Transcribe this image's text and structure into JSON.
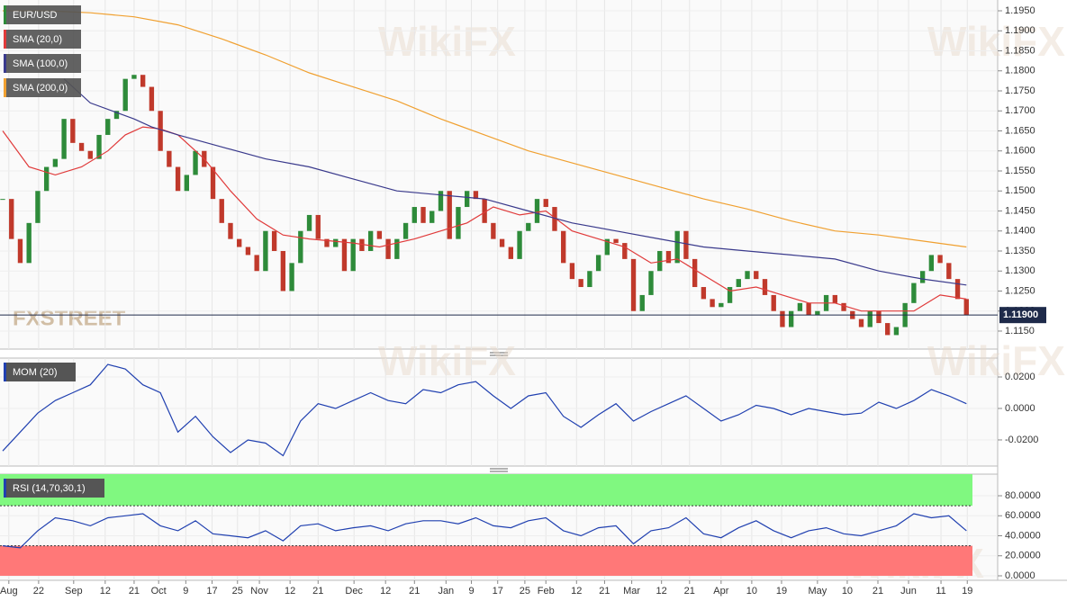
{
  "chart_data": [
    {
      "type": "candlestick",
      "title": "EUR/USD",
      "logo": "FXSTREET",
      "watermark": "WikiFX",
      "up_color": "#2e8b3a",
      "down_color": "#c0392b",
      "title_color": "#2e8b3a",
      "xlim": [
        0,
        111
      ],
      "ylim": [
        1.1105,
        1.1977
      ],
      "yticks": [
        {
          "value": 1.115,
          "label": "1.1150"
        },
        {
          "value": 1.12,
          "label": "1.1200"
        },
        {
          "value": 1.125,
          "label": "1.1250"
        },
        {
          "value": 1.13,
          "label": "1.1300"
        },
        {
          "value": 1.135,
          "label": "1.1350"
        },
        {
          "value": 1.14,
          "label": "1.1400"
        },
        {
          "value": 1.145,
          "label": "1.1450"
        },
        {
          "value": 1.15,
          "label": "1.1500"
        },
        {
          "value": 1.155,
          "label": "1.1550"
        },
        {
          "value": 1.16,
          "label": "1.1600"
        },
        {
          "value": 1.165,
          "label": "1.1650"
        },
        {
          "value": 1.17,
          "label": "1.1700"
        },
        {
          "value": 1.175,
          "label": "1.1750"
        },
        {
          "value": 1.18,
          "label": "1.1800"
        },
        {
          "value": 1.185,
          "label": "1.1850"
        },
        {
          "value": 1.19,
          "label": "1.1900"
        },
        {
          "value": 1.195,
          "label": "1.1950"
        }
      ],
      "last_price": {
        "value": 1.119,
        "label": "1.11900"
      },
      "x": [
        0,
        1,
        2,
        3,
        4,
        5,
        6,
        7,
        8,
        9,
        10,
        11,
        12,
        13,
        14,
        15,
        16,
        17,
        18,
        19,
        20,
        21,
        22,
        23,
        24,
        25,
        26,
        27,
        28,
        29,
        30,
        31,
        32,
        33,
        34,
        35,
        36,
        37,
        38,
        39,
        40,
        41,
        42,
        43,
        44,
        45,
        46,
        47,
        48,
        49,
        50,
        51,
        52,
        53,
        54,
        55,
        56,
        57,
        58,
        59,
        60,
        61,
        62,
        63,
        64,
        65,
        66,
        67,
        68,
        69,
        70,
        71,
        72,
        73,
        74,
        75,
        76,
        77,
        78,
        79,
        80,
        81,
        82,
        83,
        84,
        85,
        86,
        87,
        88,
        89,
        90,
        91,
        92,
        93,
        94,
        95,
        96,
        97,
        98,
        99,
        100,
        101,
        102,
        103,
        104,
        105,
        106,
        107,
        108,
        109,
        110
      ],
      "close": [
        1.148,
        1.138,
        1.132,
        1.142,
        1.15,
        1.156,
        1.158,
        1.168,
        1.162,
        1.16,
        1.158,
        1.164,
        1.168,
        1.17,
        1.178,
        1.179,
        1.176,
        1.17,
        1.16,
        1.156,
        1.15,
        1.154,
        1.16,
        1.156,
        1.148,
        1.142,
        1.138,
        1.136,
        1.134,
        1.13,
        1.14,
        1.135,
        1.125,
        1.132,
        1.14,
        1.144,
        1.138,
        1.136,
        1.138,
        1.13,
        1.138,
        1.135,
        1.14,
        1.138,
        1.133,
        1.138,
        1.142,
        1.146,
        1.142,
        1.145,
        1.15,
        1.138,
        1.146,
        1.15,
        1.148,
        1.142,
        1.138,
        1.136,
        1.133,
        1.14,
        1.142,
        1.148,
        1.146,
        1.14,
        1.132,
        1.128,
        1.126,
        1.13,
        1.134,
        1.138,
        1.137,
        1.133,
        1.12,
        1.124,
        1.13,
        1.135,
        1.132,
        1.14,
        1.133,
        1.126,
        1.123,
        1.121,
        1.122,
        1.126,
        1.128,
        1.13,
        1.128,
        1.124,
        1.12,
        1.116,
        1.12,
        1.122,
        1.119,
        1.12,
        1.124,
        1.122,
        1.12,
        1.118,
        1.116,
        1.12,
        1.117,
        1.114,
        1.116,
        1.122,
        1.127,
        1.13,
        1.134,
        1.132,
        1.128,
        1.123,
        1.119
      ],
      "series": [
        {
          "name": "SMA (20,0)",
          "color": "#e03a3a",
          "x": [
            0,
            3,
            6,
            9,
            12,
            14,
            16,
            18,
            20,
            23,
            26,
            29,
            32,
            35,
            40,
            43,
            47,
            50,
            53,
            56,
            59,
            62,
            65,
            68,
            71,
            74,
            77,
            80,
            83,
            86,
            89,
            92,
            95,
            98,
            101,
            104,
            107,
            110
          ],
          "values": [
            1.165,
            1.156,
            1.154,
            1.156,
            1.16,
            1.164,
            1.166,
            1.1655,
            1.164,
            1.158,
            1.15,
            1.143,
            1.139,
            1.138,
            1.137,
            1.136,
            1.138,
            1.14,
            1.142,
            1.146,
            1.144,
            1.145,
            1.14,
            1.138,
            1.136,
            1.132,
            1.133,
            1.129,
            1.125,
            1.126,
            1.124,
            1.122,
            1.122,
            1.12,
            1.12,
            1.12,
            1.124,
            1.123
          ]
        },
        {
          "name": "SMA (100,0)",
          "color": "#3a3a8c",
          "x": [
            7,
            10,
            15,
            17,
            20,
            25,
            30,
            35,
            40,
            45,
            50,
            55,
            60,
            65,
            70,
            75,
            80,
            85,
            90,
            95,
            100,
            105,
            110
          ],
          "values": [
            1.178,
            1.172,
            1.168,
            1.166,
            1.164,
            1.161,
            1.158,
            1.156,
            1.153,
            1.15,
            1.149,
            1.148,
            1.145,
            1.142,
            1.14,
            1.138,
            1.136,
            1.135,
            1.134,
            1.133,
            1.13,
            1.128,
            1.1265
          ]
        },
        {
          "name": "SMA (200,0)",
          "color": "#f0a030",
          "x": [
            0,
            5,
            10,
            15,
            20,
            25,
            30,
            35,
            40,
            45,
            50,
            55,
            60,
            65,
            70,
            75,
            80,
            85,
            90,
            95,
            100,
            105,
            110
          ],
          "values": [
            1.195,
            1.195,
            1.1945,
            1.1935,
            1.1915,
            1.188,
            1.184,
            1.1795,
            1.176,
            1.1725,
            1.168,
            1.164,
            1.16,
            1.157,
            1.154,
            1.151,
            1.148,
            1.1455,
            1.1425,
            1.14,
            1.139,
            1.1375,
            1.136
          ]
        }
      ]
    },
    {
      "type": "line",
      "title": "MOM (20)",
      "title_color": "#2040b0",
      "xlim": [
        0,
        111
      ],
      "ylim": [
        -0.0366,
        0.032
      ],
      "yticks": [
        {
          "value": -0.02,
          "label": "-0.0200"
        },
        {
          "value": 0,
          "label": "0.0000"
        },
        {
          "value": 0.02,
          "label": "0.0200"
        }
      ],
      "x": [
        0,
        2,
        4,
        6,
        8,
        10,
        12,
        14,
        16,
        18,
        20,
        22,
        24,
        26,
        28,
        30,
        32,
        34,
        36,
        38,
        40,
        42,
        44,
        46,
        48,
        50,
        52,
        54,
        56,
        58,
        60,
        62,
        64,
        66,
        68,
        70,
        72,
        74,
        76,
        78,
        80,
        82,
        84,
        86,
        88,
        90,
        92,
        94,
        96,
        98,
        100,
        102,
        104,
        106,
        108,
        110
      ],
      "series": [
        {
          "color": "#2040b0",
          "values": [
            -0.027,
            -0.015,
            -0.003,
            0.005,
            0.01,
            0.015,
            0.028,
            0.025,
            0.015,
            0.01,
            -0.015,
            -0.005,
            -0.018,
            -0.028,
            -0.02,
            -0.022,
            -0.03,
            -0.008,
            0.003,
            0,
            0.005,
            0.01,
            0.005,
            0.003,
            0.012,
            0.01,
            0.015,
            0.017,
            0.008,
            0,
            0.008,
            0.01,
            -0.005,
            -0.012,
            -0.004,
            0.003,
            -0.008,
            -0.002,
            0.003,
            0.008,
            0,
            -0.008,
            -0.004,
            0.002,
            0,
            -0.004,
            0,
            -0.002,
            -0.004,
            -0.003,
            0.004,
            0,
            0.005,
            0.012,
            0.008,
            0.003
          ]
        }
      ]
    },
    {
      "type": "line",
      "title": "RSI (14,70,30,1)",
      "title_color": "#2040b0",
      "xlim": [
        0,
        111
      ],
      "ylim": [
        -4.5,
        101.6
      ],
      "overbought": 70,
      "oversold": 30,
      "overbought_color": "#80f880",
      "oversold_color": "#ff7878",
      "yticks": [
        {
          "value": 0,
          "label": "0.0000"
        },
        {
          "value": 20,
          "label": "20.0000"
        },
        {
          "value": 40,
          "label": "40.0000"
        },
        {
          "value": 60,
          "label": "60.0000"
        },
        {
          "value": 80,
          "label": "80.0000"
        }
      ],
      "xticks": [
        {
          "value": 0.7,
          "label": "Aug"
        },
        {
          "value": 4.1,
          "label": "22"
        },
        {
          "value": 8.1,
          "label": "Sep"
        },
        {
          "value": 11.7,
          "label": "12"
        },
        {
          "value": 15,
          "label": "21"
        },
        {
          "value": 17.8,
          "label": "Oct"
        },
        {
          "value": 20.9,
          "label": "9"
        },
        {
          "value": 23.9,
          "label": "17"
        },
        {
          "value": 26.8,
          "label": "25"
        },
        {
          "value": 29.3,
          "label": "Nov"
        },
        {
          "value": 32.8,
          "label": "12"
        },
        {
          "value": 36,
          "label": "21"
        },
        {
          "value": 40.1,
          "label": "Dec"
        },
        {
          "value": 43.7,
          "label": "12"
        },
        {
          "value": 47,
          "label": "21"
        },
        {
          "value": 50.6,
          "label": "Jan"
        },
        {
          "value": 53.5,
          "label": "9"
        },
        {
          "value": 56.5,
          "label": "17"
        },
        {
          "value": 59.6,
          "label": "25"
        },
        {
          "value": 62,
          "label": "Feb"
        },
        {
          "value": 65.5,
          "label": "12"
        },
        {
          "value": 68.7,
          "label": "21"
        },
        {
          "value": 71.8,
          "label": "Mar"
        },
        {
          "value": 75.2,
          "label": "12"
        },
        {
          "value": 78.4,
          "label": "21"
        },
        {
          "value": 82,
          "label": "Apr"
        },
        {
          "value": 85.5,
          "label": "10"
        },
        {
          "value": 88.9,
          "label": "19"
        },
        {
          "value": 93,
          "label": "May"
        },
        {
          "value": 96.4,
          "label": "10"
        },
        {
          "value": 99.9,
          "label": "21"
        },
        {
          "value": 103.4,
          "label": "Jun"
        },
        {
          "value": 107.1,
          "label": "11"
        },
        {
          "value": 110.1,
          "label": "19"
        }
      ],
      "x": [
        0,
        2,
        4,
        6,
        8,
        10,
        12,
        14,
        16,
        18,
        20,
        22,
        24,
        26,
        28,
        30,
        32,
        34,
        36,
        38,
        40,
        42,
        44,
        46,
        48,
        50,
        52,
        54,
        56,
        58,
        60,
        62,
        64,
        66,
        68,
        70,
        72,
        74,
        76,
        78,
        80,
        82,
        84,
        86,
        88,
        90,
        92,
        94,
        96,
        98,
        100,
        102,
        104,
        106,
        108,
        110
      ],
      "series": [
        {
          "color": "#2040b0",
          "values": [
            30,
            28,
            45,
            58,
            55,
            50,
            58,
            60,
            62,
            50,
            45,
            55,
            42,
            40,
            38,
            45,
            35,
            50,
            52,
            45,
            48,
            50,
            45,
            52,
            55,
            55,
            52,
            58,
            50,
            48,
            55,
            58,
            45,
            40,
            48,
            50,
            32,
            45,
            48,
            58,
            42,
            38,
            48,
            55,
            45,
            38,
            45,
            48,
            42,
            40,
            45,
            50,
            62,
            58,
            60,
            45
          ]
        }
      ]
    }
  ]
}
